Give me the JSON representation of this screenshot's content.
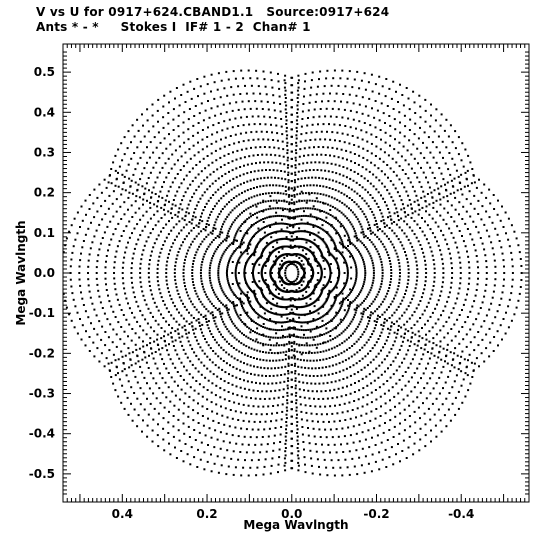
{
  "header": {
    "line1": "V vs U for 0917+624.CBAND1.1   Source:0917+624",
    "line2": "Ants * - *     Stokes I  IF# 1 - 2  Chan# 1"
  },
  "chart_data": {
    "type": "scatter",
    "title": "V vs U for 0917+624.CBAND1.1   Source:0917+624",
    "subtitle": "Ants * - *     Stokes I  IF# 1 - 2  Chan# 1",
    "xlabel": "Mega Wavlngth",
    "ylabel": "Mega Wavlngth",
    "xlim": [
      0.54,
      -0.56
    ],
    "ylim": [
      -0.57,
      0.57
    ],
    "x_reversed": true,
    "x_ticks": [
      0.4,
      0.2,
      0.0,
      -0.2,
      -0.4
    ],
    "x_tick_labels": [
      "0.4",
      "0.2",
      "0.0",
      "-0.2",
      "-0.4"
    ],
    "y_ticks": [
      0.5,
      0.4,
      0.3,
      0.2,
      0.1,
      0.0,
      -0.1,
      -0.2,
      -0.3,
      -0.4,
      -0.5
    ],
    "y_tick_labels": [
      "0.5",
      "0.4",
      "0.3",
      "0.2",
      "0.1",
      "0.0",
      "-0.1",
      "-0.2",
      "-0.3",
      "-0.4",
      "-0.5"
    ],
    "grid": false,
    "marker_color": "#000000",
    "pattern": "uv-coverage arcs with six-fold symmetry, max radius ~0.55 Mλ"
  }
}
